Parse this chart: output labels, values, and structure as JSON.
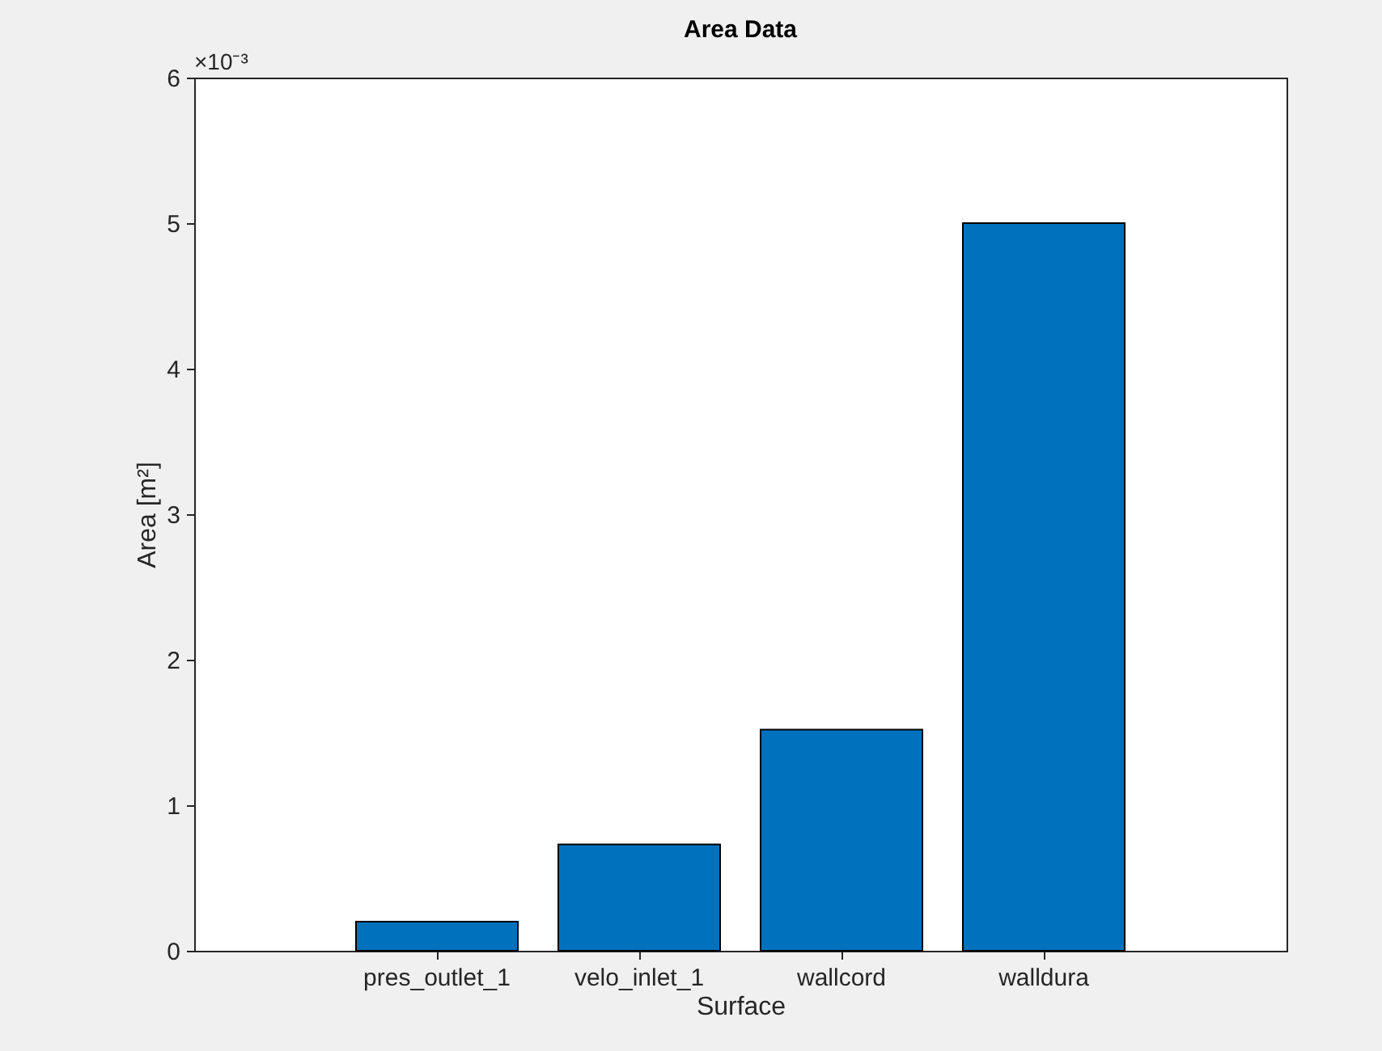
{
  "chart_data": {
    "type": "bar",
    "title": "Area Data",
    "xlabel": "Surface",
    "ylabel": "Area [m²]",
    "categories": [
      "pres_outlet_1",
      "velo_inlet_1",
      "wallcord",
      "walldura"
    ],
    "values": [
      0.2,
      0.73,
      1.52,
      5
    ],
    "color": "#0072bd",
    "ylim": [
      0,
      6
    ],
    "yticks": [
      0,
      1,
      2,
      3,
      4,
      5,
      6
    ],
    "annotations": [
      "×10⁻³"
    ]
  }
}
